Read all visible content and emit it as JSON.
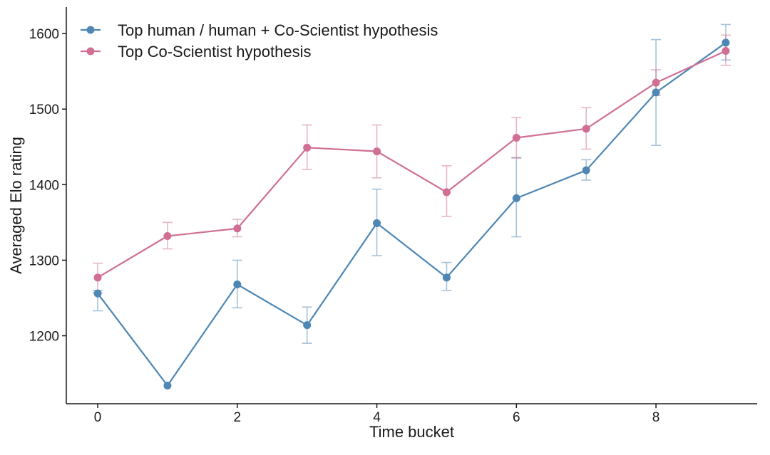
{
  "chart_data": {
    "type": "line",
    "title": "",
    "xlabel": "Time bucket",
    "ylabel": "Averaged Elo rating",
    "xlim": [
      -0.45,
      9.45
    ],
    "ylim": [
      1110,
      1635
    ],
    "xticks": [
      0,
      2,
      4,
      6,
      8
    ],
    "yticks": [
      1200,
      1300,
      1400,
      1500,
      1600
    ],
    "grid": false,
    "legend_position": "top-left",
    "x": [
      0,
      1,
      2,
      3,
      4,
      5,
      6,
      7,
      8,
      9
    ],
    "series": [
      {
        "name": "Top human / human + Co-Scientist hypothesis",
        "color": "#4e86b4",
        "values": [
          1256,
          1134,
          1268,
          1214,
          1349,
          1277,
          1382,
          1419,
          1522,
          1588
        ],
        "error_low": [
          1233,
          null,
          1237,
          1190,
          1306,
          1260,
          1331,
          1406,
          1452,
          1565
        ],
        "error_high": [
          1260,
          null,
          1300,
          1238,
          1394,
          1297,
          1436,
          1433,
          1592,
          1612
        ]
      },
      {
        "name": "Top Co-Scientist hypothesis",
        "color": "#d06f93",
        "values": [
          1277,
          1332,
          1342,
          1449,
          1444,
          1390,
          1462,
          1474,
          1535,
          1577
        ],
        "error_low": [
          1257,
          1315,
          1331,
          1420,
          1409,
          1358,
          1435,
          1447,
          1518,
          1558
        ],
        "error_high": [
          1296,
          1350,
          1354,
          1479,
          1479,
          1425,
          1489,
          1502,
          1552,
          1598
        ]
      }
    ]
  }
}
